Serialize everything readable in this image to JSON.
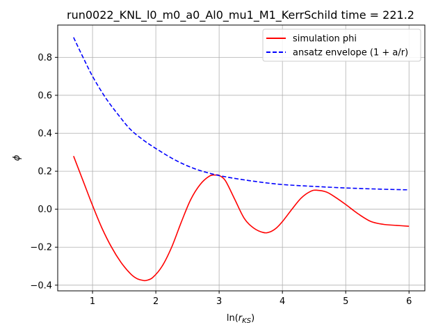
{
  "chart_data": {
    "type": "line",
    "title": "run0022_KNL_l0_m0_a0_Al0_mu1_M1_KerrSchild time = 221.2",
    "xlabel": "ln(r_KS)",
    "ylabel": "ϕ",
    "xlim": [
      0.45,
      6.25
    ],
    "ylim": [
      -0.43,
      0.97
    ],
    "xticks": [
      1,
      2,
      3,
      4,
      5,
      6
    ],
    "yticks": [
      -0.4,
      -0.2,
      0.0,
      0.2,
      0.4,
      0.6,
      0.8
    ],
    "ytick_labels": [
      "−0.4",
      "−0.2",
      "0.0",
      "0.2",
      "0.4",
      "0.6",
      "0.8"
    ],
    "grid": true,
    "legend_position": "top-right",
    "series": [
      {
        "name": "simulation phi",
        "color": "#ff0000",
        "style": "solid",
        "x": [
          0.7,
          0.85,
          1.0,
          1.15,
          1.3,
          1.45,
          1.6,
          1.7,
          1.8,
          1.85,
          1.95,
          2.1,
          2.25,
          2.4,
          2.55,
          2.7,
          2.85,
          2.95,
          3.0,
          3.1,
          3.25,
          3.4,
          3.55,
          3.7,
          3.8,
          3.9,
          4.0,
          4.15,
          4.3,
          4.45,
          4.55,
          4.7,
          4.85,
          5.0,
          5.2,
          5.4,
          5.6,
          5.8,
          6.0
        ],
        "y": [
          0.28,
          0.15,
          0.02,
          -0.1,
          -0.2,
          -0.28,
          -0.34,
          -0.365,
          -0.375,
          -0.375,
          -0.36,
          -0.3,
          -0.2,
          -0.07,
          0.05,
          0.13,
          0.175,
          0.18,
          0.178,
          0.15,
          0.05,
          -0.05,
          -0.1,
          -0.123,
          -0.12,
          -0.1,
          -0.065,
          0.0,
          0.06,
          0.095,
          0.1,
          0.09,
          0.06,
          0.025,
          -0.025,
          -0.065,
          -0.08,
          -0.085,
          -0.09
        ]
      },
      {
        "name": "ansatz envelope (1 + a/r)",
        "color": "#0000ff",
        "style": "dashed",
        "x": [
          0.7,
          0.85,
          1.0,
          1.2,
          1.4,
          1.6,
          1.8,
          2.0,
          2.3,
          2.6,
          2.9,
          3.2,
          3.6,
          4.0,
          4.5,
          5.0,
          5.5,
          6.0
        ],
        "y": [
          0.905,
          0.8,
          0.7,
          0.59,
          0.5,
          0.42,
          0.365,
          0.32,
          0.26,
          0.215,
          0.185,
          0.165,
          0.145,
          0.13,
          0.12,
          0.112,
          0.106,
          0.102
        ]
      }
    ]
  }
}
